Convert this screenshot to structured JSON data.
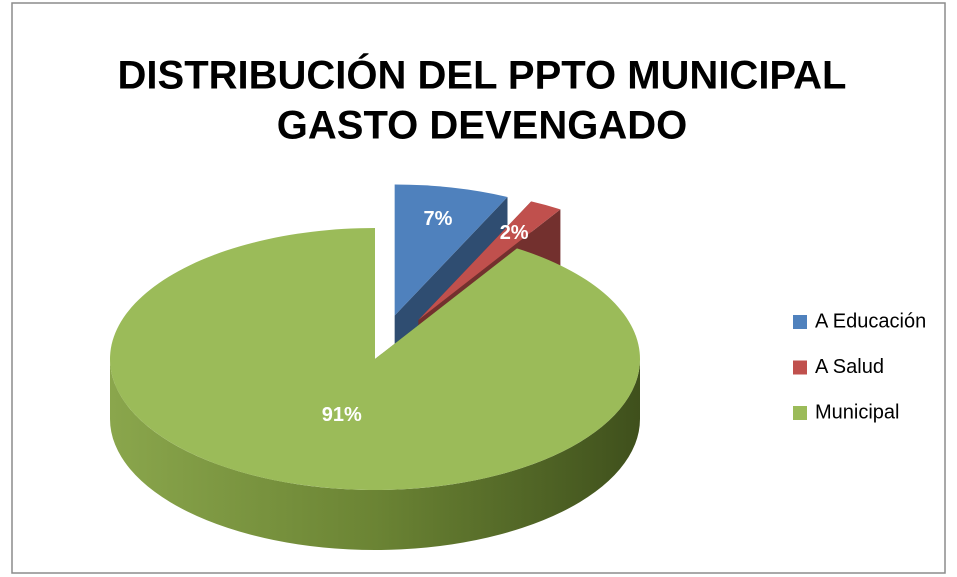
{
  "chart_data": {
    "type": "pie",
    "title": "DISTRIBUCIÓN DEL PPTO MUNICIPAL",
    "subtitle": "GASTO DEVENGADO",
    "categories": [
      "A Educación",
      "A Salud",
      "Municipal"
    ],
    "values": [
      7,
      2,
      91
    ],
    "value_labels": [
      "7%",
      "2%",
      "91%"
    ],
    "colors": [
      "#4f81bd",
      "#c0504d",
      "#9bbb59"
    ],
    "legend": "right"
  }
}
